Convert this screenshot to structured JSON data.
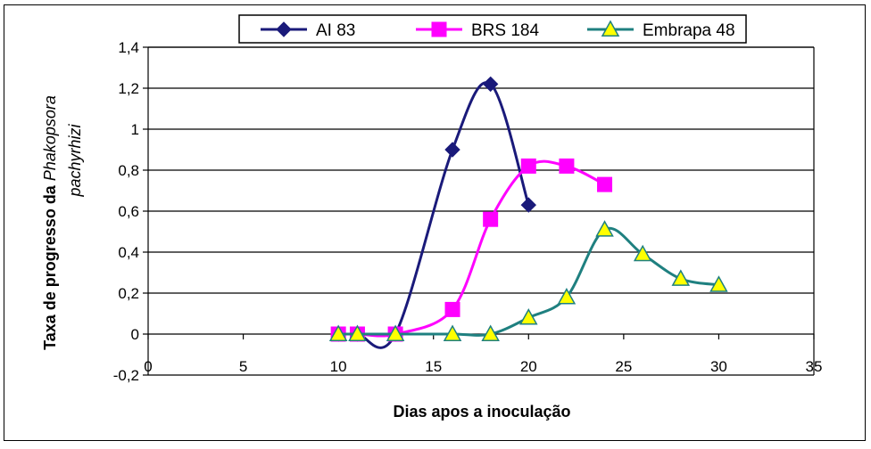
{
  "chart_data": {
    "type": "line",
    "xlabel": "Dias apos a inoculação",
    "ylabel_prefix": "Taxa de progresso da ",
    "ylabel_italic_1": "Phakopsora",
    "ylabel_italic_2": "pachyrhizi",
    "xlim": [
      0,
      35
    ],
    "ylim": [
      -0.2,
      1.4
    ],
    "x_ticks": [
      "0",
      "5",
      "10",
      "15",
      "20",
      "25",
      "30",
      "35"
    ],
    "y_ticks": [
      "-0,2",
      "0",
      "0,2",
      "0,4",
      "0,6",
      "0,8",
      "1",
      "1,2",
      "1,4"
    ],
    "grid": "horizontal",
    "legend_position": "top",
    "series": [
      {
        "name": "AI  83",
        "color": "#1a1a7a",
        "marker": "diamond",
        "x": [
          10,
          11,
          13,
          16,
          18,
          20
        ],
        "y": [
          0.0,
          0.0,
          0.0,
          0.9,
          1.22,
          0.63
        ]
      },
      {
        "name": "BRS 184",
        "color": "#ff00ff",
        "marker": "square",
        "x": [
          10,
          11,
          13,
          16,
          18,
          20,
          22,
          24
        ],
        "y": [
          0.0,
          0.0,
          0.0,
          0.12,
          0.56,
          0.82,
          0.82,
          0.73
        ]
      },
      {
        "name": "Embrapa 48",
        "color": "#1f8080",
        "marker": "triangle",
        "marker_fill": "#ffff00",
        "x": [
          10,
          11,
          13,
          16,
          18,
          20,
          22,
          24,
          26,
          28,
          30
        ],
        "y": [
          0.0,
          0.0,
          0.0,
          0.0,
          0.0,
          0.08,
          0.18,
          0.51,
          0.39,
          0.27,
          0.24
        ]
      }
    ]
  }
}
